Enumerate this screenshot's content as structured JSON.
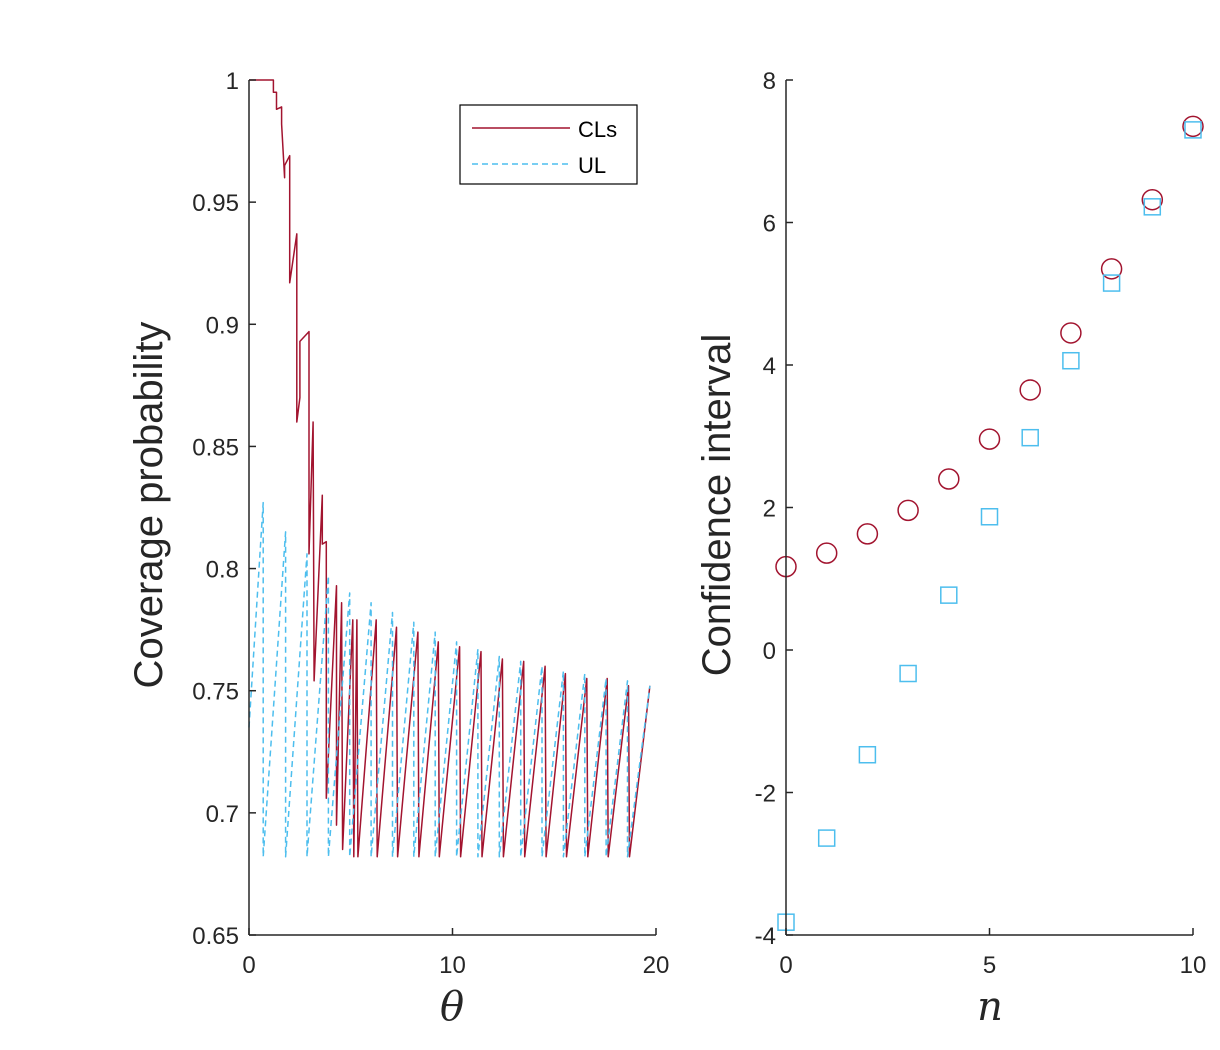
{
  "colors": {
    "cls": "#A2142F",
    "ul": "#4DBEEE",
    "axis": "#262626"
  },
  "chart_data": [
    {
      "type": "line",
      "xlabel": "θ",
      "ylabel": "Coverage probability",
      "xlim": [
        0,
        20
      ],
      "ylim": [
        0.65,
        1
      ],
      "xticks": [
        "0",
        "10",
        "20"
      ],
      "yticks": [
        "0.65",
        "0.7",
        "0.75",
        "0.8",
        "0.85",
        "0.9",
        "0.95",
        "1"
      ],
      "legend": {
        "position": "top-right",
        "entries": [
          "CLs",
          "UL"
        ]
      },
      "series": [
        {
          "name": "CLs",
          "style": "solid",
          "x": [
            0,
            1.2,
            1.2,
            1.35,
            1.35,
            1.6,
            1.6,
            1.75,
            1.75,
            2.0,
            2.0,
            2.35,
            2.35,
            2.5,
            2.5,
            2.95,
            2.95,
            3.15,
            3.2,
            3.6,
            3.6,
            3.8,
            3.8,
            4.3,
            4.3,
            4.55,
            4.6,
            5.1,
            5.15,
            5.3,
            5.35,
            6.25,
            6.3,
            7.25,
            7.3,
            8.3,
            8.35,
            9.3,
            9.35,
            10.35,
            10.4,
            11.4,
            11.45,
            12.45,
            12.5,
            13.5,
            13.55,
            14.55,
            14.6,
            15.55,
            15.6,
            16.6,
            16.65,
            17.6,
            17.65,
            18.65,
            18.7,
            19.7
          ],
          "y": [
            1,
            1,
            0.995,
            0.995,
            0.988,
            0.989,
            0.982,
            0.96,
            0.965,
            0.969,
            0.917,
            0.937,
            0.86,
            0.87,
            0.893,
            0.897,
            0.806,
            0.86,
            0.754,
            0.83,
            0.81,
            0.811,
            0.706,
            0.793,
            0.695,
            0.786,
            0.685,
            0.779,
            0.682,
            0.779,
            0.682,
            0.779,
            0.682,
            0.776,
            0.682,
            0.774,
            0.682,
            0.77,
            0.682,
            0.768,
            0.682,
            0.766,
            0.682,
            0.763,
            0.682,
            0.762,
            0.682,
            0.76,
            0.682,
            0.757,
            0.682,
            0.755,
            0.682,
            0.755,
            0.682,
            0.752,
            0.682,
            0.752
          ]
        },
        {
          "name": "UL",
          "style": "dashed",
          "x": [
            0,
            0.7,
            0.7,
            1.8,
            1.8,
            2.85,
            2.85,
            3.9,
            3.9,
            4.95,
            4.95,
            6.0,
            6.0,
            7.05,
            7.05,
            8.1,
            8.1,
            9.15,
            9.15,
            10.2,
            10.2,
            11.25,
            11.25,
            12.3,
            12.3,
            13.35,
            13.35,
            14.4,
            14.4,
            15.45,
            15.45,
            16.5,
            16.5,
            17.55,
            17.55,
            18.6,
            18.6,
            19.7
          ],
          "y": [
            0.735,
            0.827,
            0.682,
            0.815,
            0.682,
            0.806,
            0.682,
            0.797,
            0.682,
            0.79,
            0.682,
            0.786,
            0.682,
            0.782,
            0.682,
            0.778,
            0.682,
            0.774,
            0.682,
            0.77,
            0.682,
            0.767,
            0.682,
            0.764,
            0.682,
            0.762,
            0.682,
            0.76,
            0.682,
            0.758,
            0.682,
            0.757,
            0.682,
            0.755,
            0.682,
            0.754,
            0.682,
            0.752
          ]
        }
      ]
    },
    {
      "type": "scatter",
      "xlabel": "n",
      "ylabel": "Confidence interval",
      "xlim": [
        0,
        10
      ],
      "ylim": [
        -4,
        8
      ],
      "xticks": [
        "0",
        "5",
        "10"
      ],
      "yticks": [
        "-4",
        "-2",
        "0",
        "2",
        "4",
        "6",
        "8"
      ],
      "series": [
        {
          "name": "CLs",
          "marker": "circle",
          "x": [
            0,
            1,
            2,
            3,
            4,
            5,
            6,
            7,
            8,
            9,
            10
          ],
          "y": [
            1.17,
            1.36,
            1.63,
            1.96,
            2.4,
            2.96,
            3.65,
            4.45,
            5.35,
            6.32,
            7.35
          ]
        },
        {
          "name": "UL",
          "marker": "square",
          "x": [
            0,
            1,
            2,
            3,
            4,
            5,
            6,
            7,
            8,
            9,
            10
          ],
          "y": [
            -3.82,
            -2.64,
            -1.47,
            -0.33,
            0.77,
            1.87,
            2.98,
            4.06,
            5.15,
            6.22,
            7.3
          ]
        }
      ]
    }
  ]
}
